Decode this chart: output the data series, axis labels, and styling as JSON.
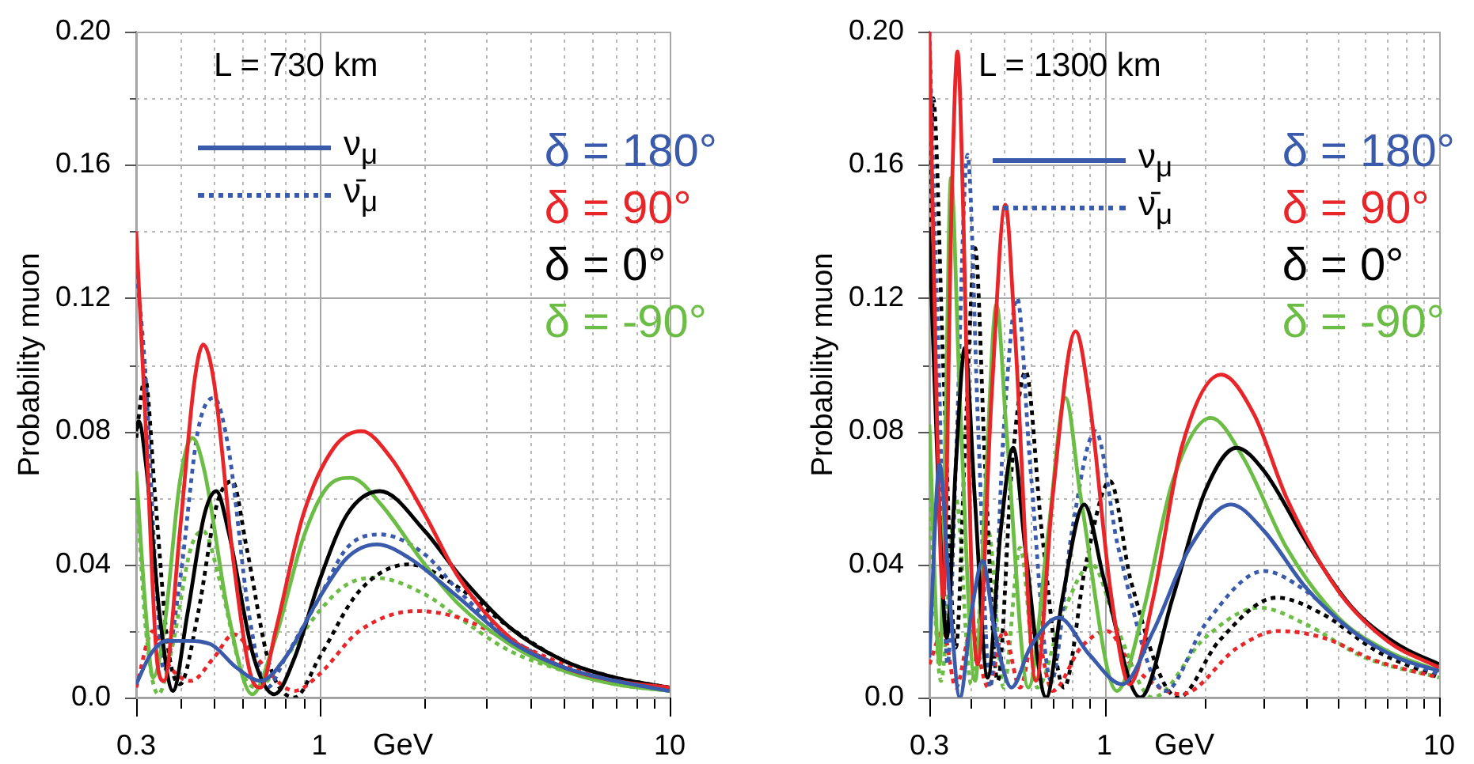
{
  "chart_data": [
    {
      "type": "line",
      "title": "L = 730 km",
      "ylabel": "Probability muon",
      "xlabel": "GeV",
      "log": "x",
      "grid": true,
      "legend": "top right",
      "xlim": [
        0.3,
        10
      ],
      "ylim": [
        0,
        0.2
      ],
      "xticks": [
        0.3,
        {
          "value": 0.4,
          "label": null
        },
        {
          "value": 0.5,
          "label": null
        },
        {
          "value": 0.6,
          "label": null
        },
        {
          "value": 0.7,
          "label": null
        },
        {
          "value": 0.8,
          "label": null
        },
        {
          "value": 0.9,
          "label": null
        },
        1,
        {
          "value": 2,
          "label": null
        },
        {
          "value": 3,
          "label": null
        },
        {
          "value": 4,
          "label": null
        },
        {
          "value": 5,
          "label": null
        },
        {
          "value": 6,
          "label": null
        },
        {
          "value": 7,
          "label": null
        },
        {
          "value": 8,
          "label": null
        },
        {
          "value": 9,
          "label": null
        },
        10
      ],
      "yticks": [
        {
          "value": 0,
          "label": "0.0"
        },
        {
          "value": 0.02,
          "label": null
        },
        0.04,
        {
          "value": 0.06,
          "label": null
        },
        0.08,
        {
          "value": 0.1,
          "label": null
        },
        0.12,
        {
          "value": 0.14,
          "label": null
        },
        0.16,
        {
          "value": 0.18,
          "label": null
        },
        {
          "value": 0.2,
          "label": "0.20"
        }
      ],
      "annotations": [
        "ν$_{μ}$",
        "ν̄$_{μ}$"
      ],
      "series": [
        {
          "name": "δ = 180°",
          "color": "#3a5bab",
          "line_style": "solid",
          "x": [
            0.3,
            0.33,
            0.365,
            0.42,
            0.49,
            0.58,
            0.68,
            0.8,
            1,
            1.2,
            1.46,
            1.8,
            2.5,
            3.5,
            5,
            7,
            10
          ],
          "values": [
            0.004,
            0.013,
            0.017,
            0.017,
            0.016,
            0.009,
            0.005,
            0.012,
            0.03,
            0.042,
            0.046,
            0.042,
            0.03,
            0.017,
            0.009,
            0.005,
            0.002
          ]
        },
        {
          "name": "δ = 90°",
          "color": "#e8262a",
          "line_style": "solid",
          "x": [
            0.3,
            0.32,
            0.345,
            0.36,
            0.4,
            0.44,
            0.466,
            0.5,
            0.57,
            0.64,
            0.68,
            0.75,
            0.9,
            1.1,
            1.32,
            1.6,
            2,
            2.5,
            3.5,
            5,
            7,
            10
          ],
          "values": [
            0.14,
            0.08,
            0.01,
            0.005,
            0.05,
            0.095,
            0.106,
            0.095,
            0.04,
            0.006,
            0.003,
            0.02,
            0.055,
            0.075,
            0.08,
            0.072,
            0.055,
            0.036,
            0.018,
            0.009,
            0.005,
            0.003
          ]
        },
        {
          "name": "δ = 0°",
          "color": "#000000",
          "line_style": "solid",
          "x": [
            0.3,
            0.305,
            0.32,
            0.35,
            0.382,
            0.42,
            0.47,
            0.508,
            0.55,
            0.65,
            0.744,
            0.85,
            1,
            1.2,
            1.49,
            2,
            2.5,
            3.5,
            5,
            7,
            10
          ],
          "values": [
            0.08,
            0.083,
            0.07,
            0.025,
            0.002,
            0.025,
            0.055,
            0.062,
            0.05,
            0.012,
            0.001,
            0.012,
            0.035,
            0.055,
            0.062,
            0.05,
            0.037,
            0.021,
            0.011,
            0.006,
            0.003
          ]
        },
        {
          "name": "δ = -90°",
          "color": "#6cbd45",
          "line_style": "solid",
          "x": [
            0.3,
            0.32,
            0.335,
            0.36,
            0.4,
            0.434,
            0.47,
            0.55,
            0.643,
            0.75,
            0.9,
            1.05,
            1.23,
            1.5,
            2,
            2.5,
            3.5,
            5,
            7,
            10
          ],
          "values": [
            0.068,
            0.025,
            0.006,
            0.02,
            0.065,
            0.078,
            0.068,
            0.025,
            0.001,
            0.018,
            0.048,
            0.063,
            0.066,
            0.058,
            0.04,
            0.028,
            0.016,
            0.008,
            0.004,
            0.002
          ]
        },
        {
          "color": "#3a5bab",
          "line_style": "dotted",
          "x": [
            0.3,
            0.32,
            0.34,
            0.36,
            0.4,
            0.45,
            0.5,
            0.55,
            0.63,
            0.71,
            0.8,
            1,
            1.2,
            1.49,
            2,
            2.5,
            3.5,
            5,
            7,
            10
          ],
          "values": [
            0.13,
            0.095,
            0.04,
            0.008,
            0.035,
            0.08,
            0.09,
            0.075,
            0.025,
            0.003,
            0.012,
            0.03,
            0.045,
            0.049,
            0.043,
            0.032,
            0.018,
            0.009,
            0.005,
            0.002
          ]
        },
        {
          "color": "#e8262a",
          "line_style": "dotted",
          "x": [
            0.3,
            0.335,
            0.37,
            0.43,
            0.5,
            0.57,
            0.66,
            0.85,
            1,
            1.3,
            1.9,
            2.5,
            3.5,
            5,
            7,
            10
          ],
          "values": [
            0.003,
            0.02,
            0.01,
            0.005,
            0.012,
            0.019,
            0.012,
            0.002,
            0.007,
            0.02,
            0.026,
            0.024,
            0.017,
            0.01,
            0.005,
            0.003
          ]
        },
        {
          "color": "#000000",
          "line_style": "dotted",
          "x": [
            0.3,
            0.318,
            0.34,
            0.37,
            0.4,
            0.45,
            0.51,
            0.564,
            0.62,
            0.72,
            0.85,
            1,
            1.3,
            1.8,
            2.5,
            3.5,
            5,
            7,
            10
          ],
          "values": [
            0.078,
            0.096,
            0.06,
            0.015,
            0.004,
            0.025,
            0.058,
            0.065,
            0.045,
            0.01,
            0.0,
            0.012,
            0.032,
            0.04,
            0.033,
            0.021,
            0.011,
            0.006,
            0.003
          ]
        },
        {
          "color": "#6cbd45",
          "line_style": "dotted",
          "x": [
            0.3,
            0.32,
            0.347,
            0.38,
            0.43,
            0.466,
            0.52,
            0.6,
            0.66,
            0.8,
            1,
            1.2,
            1.44,
            2,
            2.5,
            3.5,
            5,
            7,
            10
          ],
          "values": [
            0.065,
            0.02,
            0.001,
            0.015,
            0.045,
            0.05,
            0.035,
            0.008,
            0.003,
            0.012,
            0.026,
            0.034,
            0.036,
            0.031,
            0.024,
            0.014,
            0.008,
            0.004,
            0.002
          ]
        }
      ]
    },
    {
      "type": "line",
      "title": "L = 1300 km",
      "ylabel": "Probability muon",
      "xlabel": "GeV",
      "log": "x",
      "grid": true,
      "legend": "top right",
      "xlim": [
        0.3,
        10
      ],
      "ylim": [
        0,
        0.2
      ],
      "xticks": [
        0.3,
        {
          "value": 0.4,
          "label": null
        },
        {
          "value": 0.5,
          "label": null
        },
        {
          "value": 0.6,
          "label": null
        },
        {
          "value": 0.7,
          "label": null
        },
        {
          "value": 0.8,
          "label": null
        },
        {
          "value": 0.9,
          "label": null
        },
        1,
        {
          "value": 2,
          "label": null
        },
        {
          "value": 3,
          "label": null
        },
        {
          "value": 4,
          "label": null
        },
        {
          "value": 5,
          "label": null
        },
        {
          "value": 6,
          "label": null
        },
        {
          "value": 7,
          "label": null
        },
        {
          "value": 8,
          "label": null
        },
        {
          "value": 9,
          "label": null
        },
        10
      ],
      "yticks": [
        {
          "value": 0,
          "label": "0.0"
        },
        {
          "value": 0.02,
          "label": null
        },
        0.04,
        {
          "value": 0.06,
          "label": null
        },
        0.08,
        {
          "value": 0.1,
          "label": null
        },
        0.12,
        {
          "value": 0.14,
          "label": null
        },
        0.16,
        {
          "value": 0.18,
          "label": null
        },
        {
          "value": 0.2,
          "label": "0.20"
        }
      ],
      "annotations": [
        "ν$_{μ}$",
        "ν̄$_{μ}$"
      ],
      "series": [
        {
          "name": "δ = 180°",
          "color": "#3a5bab",
          "line_style": "solid",
          "x": [
            0.3,
            0.322,
            0.345,
            0.37,
            0.4,
            0.433,
            0.47,
            0.528,
            0.6,
            0.73,
            0.9,
            1.13,
            1.4,
            1.8,
            2.39,
            3,
            4,
            5.5,
            7.5,
            10
          ],
          "values": [
            0.012,
            0.07,
            0.03,
            0.0,
            0.025,
            0.041,
            0.02,
            0.003,
            0.015,
            0.024,
            0.013,
            0.004,
            0.02,
            0.045,
            0.058,
            0.05,
            0.033,
            0.02,
            0.012,
            0.008
          ]
        },
        {
          "name": "δ = 90°",
          "color": "#e8262a",
          "line_style": "solid",
          "x": [
            0.3,
            0.315,
            0.33,
            0.35,
            0.364,
            0.38,
            0.4,
            0.418,
            0.46,
            0.506,
            0.54,
            0.625,
            0.7,
            0.82,
            0.9,
            1.05,
            1.19,
            1.4,
            1.7,
            2.23,
            2.8,
            3.5,
            5,
            7,
            10
          ],
          "values": [
            0.2,
            0.09,
            0.03,
            0.15,
            0.194,
            0.14,
            0.04,
            0.01,
            0.09,
            0.148,
            0.11,
            0.005,
            0.06,
            0.11,
            0.09,
            0.03,
            0.004,
            0.03,
            0.075,
            0.097,
            0.085,
            0.06,
            0.032,
            0.017,
            0.009
          ]
        },
        {
          "name": "δ = 0°",
          "color": "#000000",
          "line_style": "solid",
          "x": [
            0.3,
            0.32,
            0.338,
            0.36,
            0.383,
            0.41,
            0.448,
            0.49,
            0.534,
            0.58,
            0.67,
            0.75,
            0.87,
            1,
            1.28,
            1.6,
            2,
            2.48,
            3,
            4,
            5.5,
            7.5,
            10
          ],
          "values": [
            0.14,
            0.06,
            0.018,
            0.07,
            0.105,
            0.06,
            0.006,
            0.05,
            0.075,
            0.045,
            0.0,
            0.03,
            0.058,
            0.035,
            0.0,
            0.03,
            0.062,
            0.075,
            0.068,
            0.047,
            0.027,
            0.016,
            0.01
          ]
        },
        {
          "name": "δ = -90°",
          "color": "#6cbd45",
          "line_style": "solid",
          "x": [
            0.3,
            0.322,
            0.335,
            0.348,
            0.37,
            0.411,
            0.44,
            0.476,
            0.51,
            0.593,
            0.68,
            0.765,
            0.85,
            1.09,
            1.3,
            1.6,
            2.08,
            2.6,
            3.5,
            5,
            7,
            10
          ],
          "values": [
            0.082,
            0.01,
            0.08,
            0.156,
            0.09,
            0.005,
            0.06,
            0.118,
            0.08,
            0.003,
            0.05,
            0.09,
            0.06,
            0.002,
            0.025,
            0.065,
            0.084,
            0.072,
            0.045,
            0.024,
            0.014,
            0.008
          ]
        },
        {
          "color": "#3a5bab",
          "line_style": "dotted",
          "x": [
            0.3,
            0.32,
            0.34,
            0.36,
            0.39,
            0.42,
            0.456,
            0.5,
            0.549,
            0.6,
            0.694,
            0.8,
            0.94,
            1.1,
            1.52,
            2,
            3,
            4,
            5.5,
            7.5,
            10
          ],
          "values": [
            0.2,
            0.1,
            0.01,
            0.07,
            0.163,
            0.08,
            0.003,
            0.08,
            0.12,
            0.07,
            0.005,
            0.05,
            0.08,
            0.045,
            0.002,
            0.022,
            0.038,
            0.032,
            0.02,
            0.012,
            0.007
          ]
        },
        {
          "color": "#e8262a",
          "line_style": "dotted",
          "x": [
            0.3,
            0.33,
            0.36,
            0.4,
            0.45,
            0.5,
            0.56,
            0.62,
            0.7,
            0.85,
            1.02,
            1.2,
            1.7,
            2.5,
            3.3,
            4.5,
            6.5,
            10
          ],
          "values": [
            0.01,
            0.02,
            0.003,
            0.02,
            0.003,
            0.02,
            0.003,
            0.02,
            0.002,
            0.015,
            0.02,
            0.01,
            0.001,
            0.015,
            0.02,
            0.018,
            0.011,
            0.006
          ]
        },
        {
          "color": "#000000",
          "line_style": "dotted",
          "x": [
            0.3,
            0.308,
            0.33,
            0.36,
            0.385,
            0.411,
            0.44,
            0.48,
            0.53,
            0.582,
            0.65,
            0.757,
            0.88,
            1.04,
            1.2,
            1.66,
            2.2,
            3.27,
            4.5,
            6.5,
            10
          ],
          "values": [
            0.14,
            0.18,
            0.1,
            0.015,
            0.08,
            0.135,
            0.07,
            0.005,
            0.07,
            0.098,
            0.05,
            0.003,
            0.04,
            0.065,
            0.035,
            0.0,
            0.017,
            0.03,
            0.025,
            0.014,
            0.006
          ]
        },
        {
          "color": "#6cbd45",
          "line_style": "dotted",
          "x": [
            0.3,
            0.325,
            0.36,
            0.4,
            0.45,
            0.5,
            0.56,
            0.63,
            0.75,
            0.917,
            1.1,
            1.39,
            2,
            2.9,
            4,
            6,
            10
          ],
          "values": [
            0.06,
            0.005,
            0.06,
            0.004,
            0.05,
            0.003,
            0.045,
            0.003,
            0.025,
            0.04,
            0.02,
            0.0,
            0.018,
            0.027,
            0.022,
            0.012,
            0.006
          ]
        }
      ]
    }
  ]
}
